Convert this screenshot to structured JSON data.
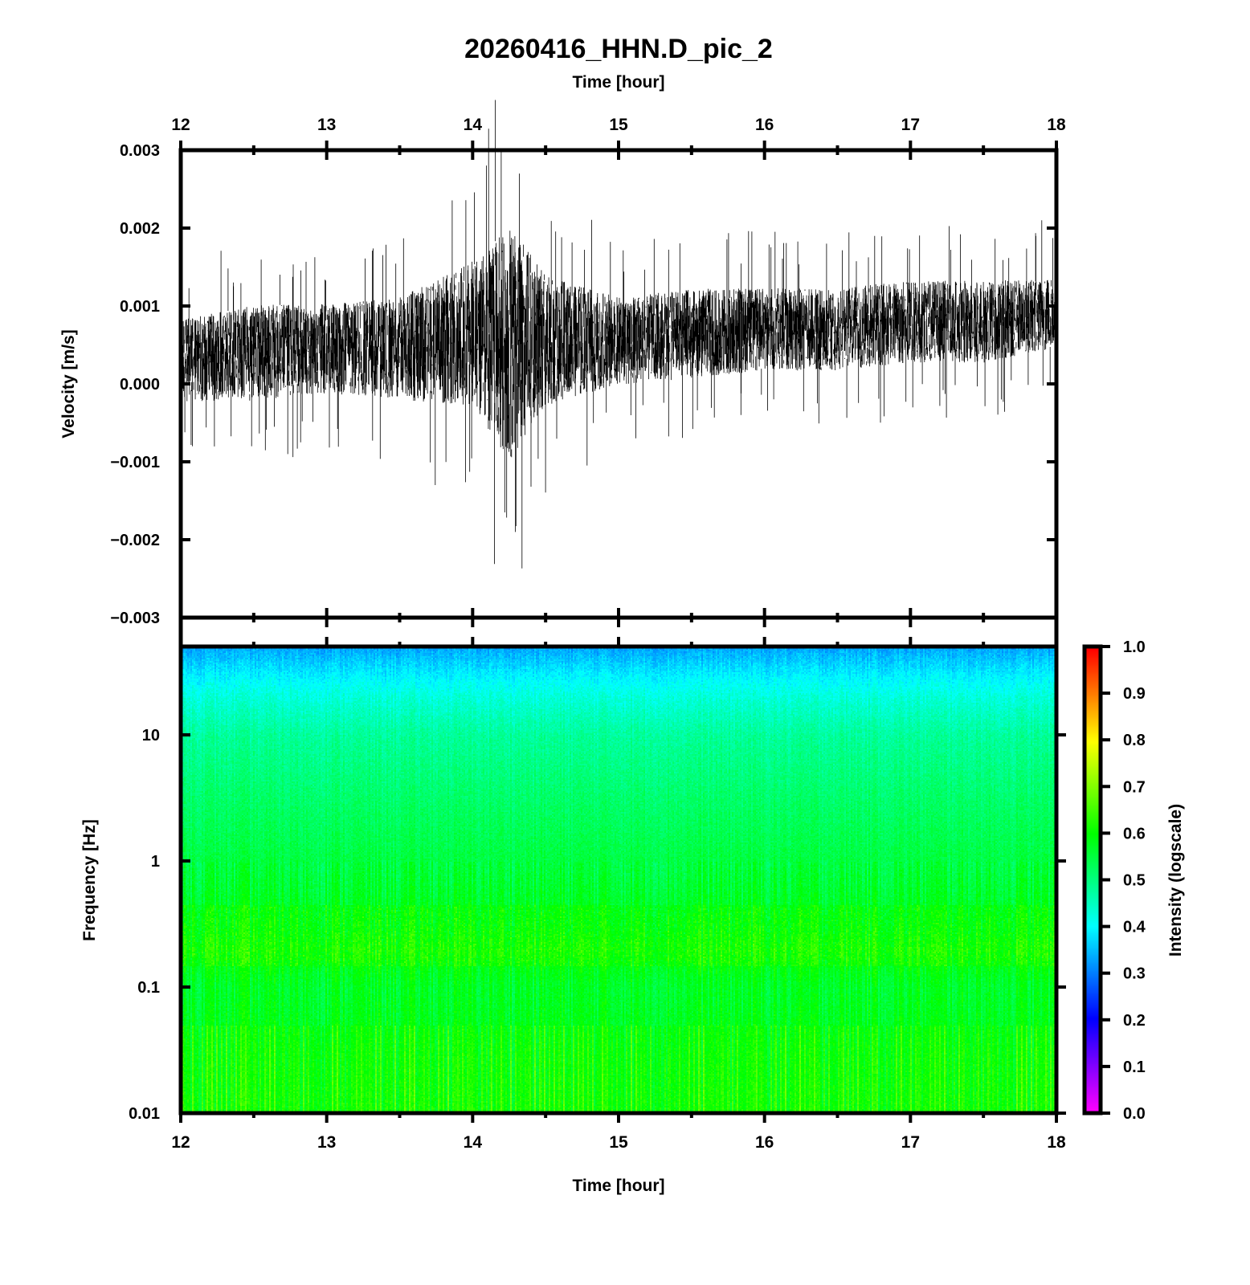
{
  "title": "20260416_HHN.D_pic_2",
  "chart_data": [
    {
      "type": "line",
      "name": "velocity-waveform",
      "xlabel": "Time [hour]",
      "ylabel": "Velocity [m/s]",
      "xlim": [
        12,
        18
      ],
      "ylim": [
        -0.003,
        0.003
      ],
      "x_ticks": [
        "12",
        "13",
        "14",
        "15",
        "16",
        "17",
        "18"
      ],
      "y_ticks": [
        "0.003",
        "0.002",
        "0.001",
        "0.000",
        "−0.001",
        "−0.002",
        "−0.003"
      ],
      "y_tick_values": [
        0.003,
        0.002,
        0.001,
        0,
        -0.001,
        -0.002,
        -0.003
      ],
      "envelope": {
        "x": [
          12.0,
          12.5,
          13.0,
          13.5,
          14.0,
          14.25,
          14.5,
          15.0,
          15.5,
          16.0,
          16.5,
          17.0,
          17.5,
          18.0
        ],
        "upper": [
          0.0009,
          0.0011,
          0.0011,
          0.0012,
          0.0017,
          0.0023,
          0.0015,
          0.0012,
          0.0013,
          0.0013,
          0.0013,
          0.0014,
          0.0014,
          0.0014
        ],
        "lower": [
          -0.0003,
          -0.0003,
          -0.0002,
          -0.0003,
          -0.0004,
          -0.0012,
          -0.0004,
          -0.0001,
          0.0,
          0.0001,
          0.0001,
          0.0002,
          0.0002,
          0.0004
        ]
      },
      "peaks": [
        {
          "x": 14.32,
          "y": 0.0027
        },
        {
          "x": 14.22,
          "y": -0.00165
        },
        {
          "x": 14.4,
          "y": -0.00132
        },
        {
          "x": 12.08,
          "y": -0.0008
        },
        {
          "x": 17.9,
          "y": 0.0021
        }
      ],
      "color": "#000000"
    },
    {
      "type": "heatmap",
      "name": "spectrogram",
      "xlabel": "Time [hour]",
      "ylabel": "Frequency [Hz]",
      "xlim": [
        12,
        18
      ],
      "ylim": [
        0.01,
        50
      ],
      "yscale": "log",
      "x_ticks": [
        "12",
        "13",
        "14",
        "15",
        "16",
        "17",
        "18"
      ],
      "y_ticks": [
        "10",
        "1",
        "0.1",
        "0.01"
      ],
      "y_tick_values": [
        10,
        1,
        0.1,
        0.01
      ],
      "intensity_profile": {
        "frequency_hz": [
          50,
          30,
          20,
          10,
          3,
          1,
          0.5,
          0.3,
          0.2,
          0.1,
          0.03,
          0.01
        ],
        "intensity": [
          0.33,
          0.39,
          0.43,
          0.48,
          0.52,
          0.55,
          0.57,
          0.58,
          0.6,
          0.57,
          0.59,
          0.6
        ]
      },
      "colorbar": {
        "label": "Intensity (logscale)",
        "range": [
          0,
          1
        ],
        "ticks": [
          "1.0",
          "0.9",
          "0.8",
          "0.7",
          "0.6",
          "0.5",
          "0.4",
          "0.3",
          "0.2",
          "0.1",
          "0.0"
        ],
        "colormap": [
          "#ff00ff",
          "#0000ff",
          "#00ffff",
          "#00ff00",
          "#ffff00",
          "#ff0000"
        ]
      }
    }
  ]
}
